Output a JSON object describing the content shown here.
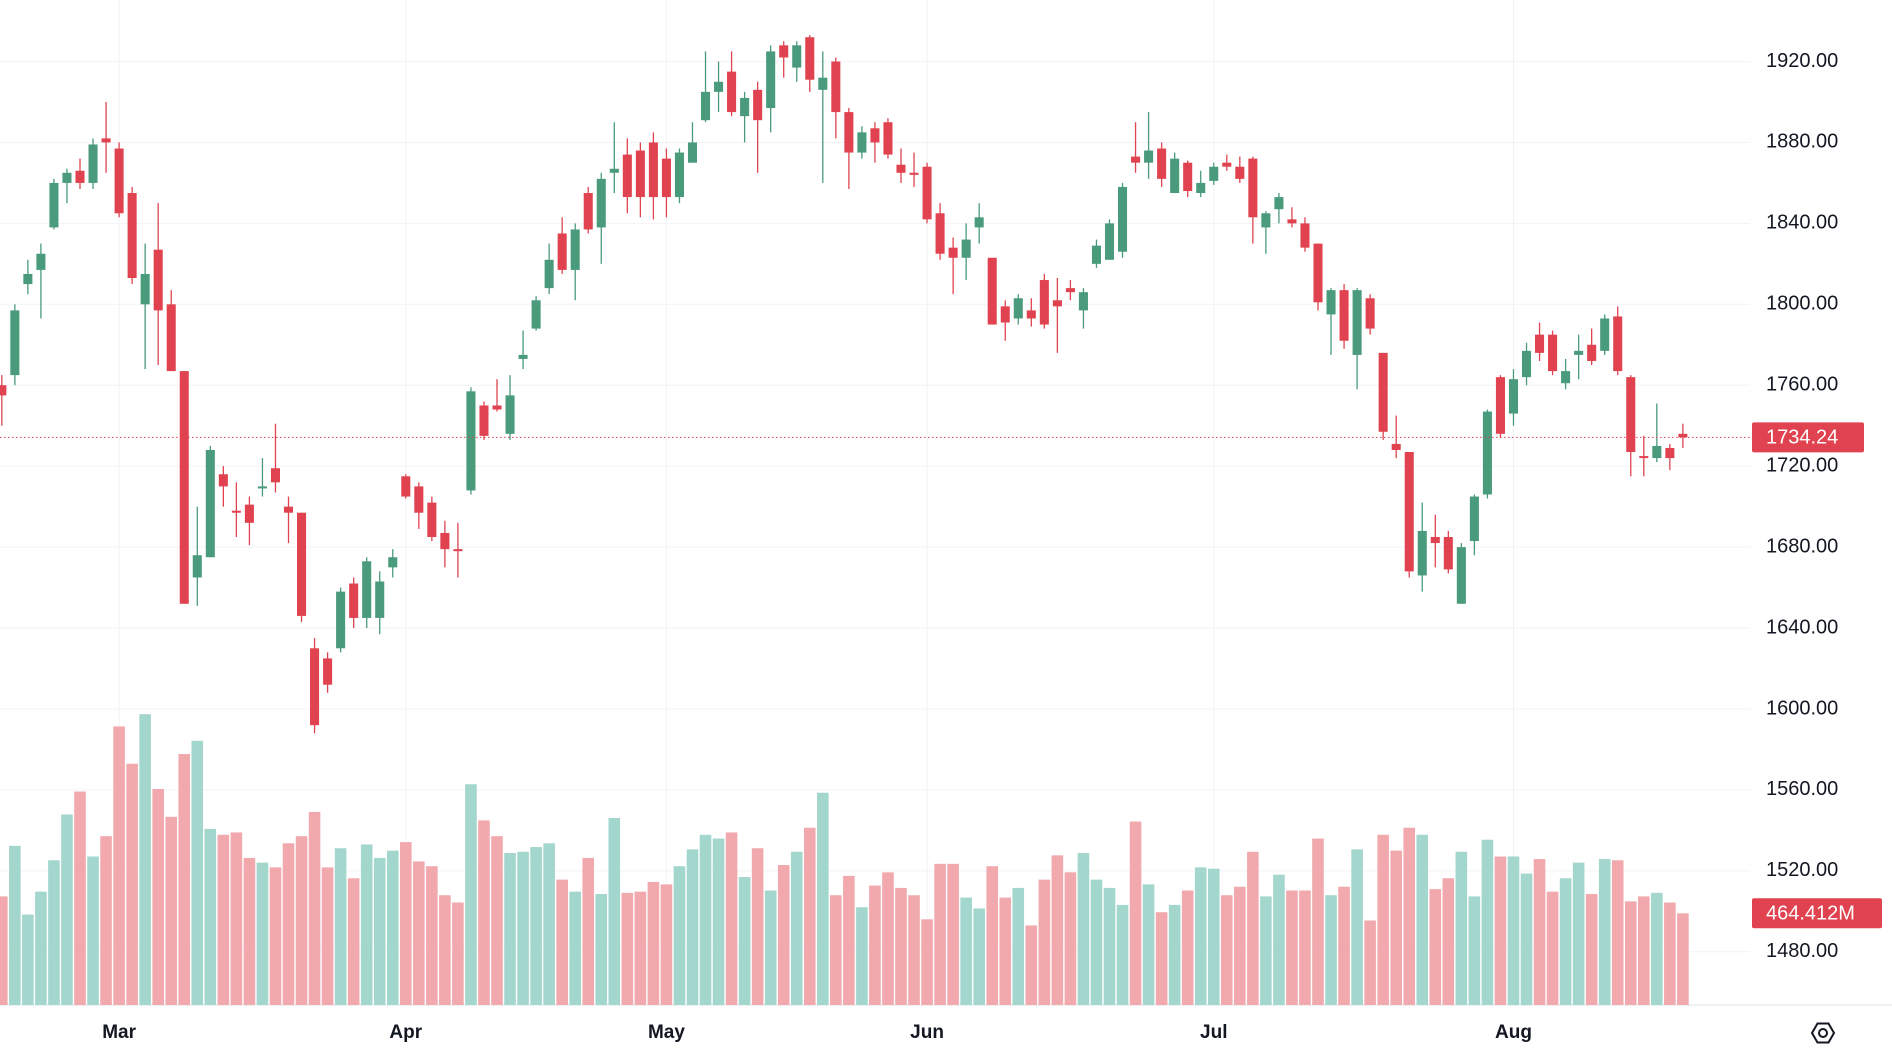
{
  "chart_data": {
    "type": "candlestick",
    "open": [
      1760,
      1765,
      1810,
      1817,
      1838,
      1860,
      1866,
      1860,
      1882,
      1877,
      1855,
      1800,
      1827,
      1800,
      1767,
      1665,
      1675,
      1716,
      1698,
      1701,
      1709,
      1719,
      1700,
      1697,
      1630,
      1625,
      1630,
      1662,
      1645,
      1645,
      1670,
      1715,
      1710,
      1702,
      1687,
      1679,
      1708,
      1750,
      1750,
      1736,
      1773,
      1788,
      1808,
      1835,
      1817,
      1855,
      1838,
      1865,
      1874,
      1876,
      1880,
      1872,
      1853,
      1870,
      1891,
      1905,
      1915,
      1893,
      1906,
      1897,
      1928,
      1917,
      1932,
      1906,
      1920,
      1895,
      1875,
      1887,
      1890,
      1869,
      1865,
      1868,
      1845,
      1828,
      1823,
      1838,
      1823,
      1799,
      1793,
      1797,
      1812,
      1802,
      1808,
      1797,
      1820,
      1822,
      1826,
      1873,
      1870,
      1877,
      1855,
      1870,
      1855,
      1861,
      1870,
      1868,
      1872,
      1838,
      1847,
      1842,
      1840,
      1830,
      1795,
      1807,
      1775,
      1803,
      1776,
      1731,
      1727,
      1666,
      1685,
      1685,
      1652,
      1683,
      1706,
      1764,
      1746,
      1764,
      1785,
      1785,
      1761,
      1775,
      1780,
      1777,
      1794,
      1764,
      1725,
      1724,
      1729,
      1736
    ],
    "high": [
      1765,
      1800,
      1822,
      1830,
      1862,
      1867,
      1872,
      1882,
      1900,
      1880,
      1858,
      1830,
      1850,
      1807,
      1767,
      1700,
      1730,
      1720,
      1712,
      1705,
      1724,
      1741,
      1705,
      1697,
      1635,
      1628,
      1660,
      1665,
      1675,
      1668,
      1679,
      1716,
      1712,
      1705,
      1693,
      1692,
      1759,
      1752,
      1763,
      1765,
      1787,
      1804,
      1830,
      1843,
      1840,
      1858,
      1865,
      1890,
      1882,
      1880,
      1885,
      1877,
      1877,
      1890,
      1925,
      1920,
      1925,
      1905,
      1910,
      1928,
      1930,
      1930,
      1933,
      1925,
      1922,
      1897,
      1888,
      1890,
      1892,
      1877,
      1875,
      1870,
      1850,
      1833,
      1840,
      1850,
      1823,
      1802,
      1805,
      1803,
      1815,
      1813,
      1812,
      1808,
      1832,
      1842,
      1860,
      1890,
      1895,
      1880,
      1875,
      1871,
      1866,
      1870,
      1874,
      1873,
      1873,
      1846,
      1855,
      1848,
      1843,
      1830,
      1808,
      1810,
      1808,
      1805,
      1776,
      1745,
      1727,
      1702,
      1696,
      1688,
      1682,
      1706,
      1748,
      1765,
      1768,
      1781,
      1791,
      1787,
      1773,
      1785,
      1788,
      1795,
      1799,
      1765,
      1735,
      1751,
      1731,
      1741
    ],
    "low": [
      1740,
      1760,
      1805,
      1793,
      1837,
      1850,
      1857,
      1857,
      1865,
      1843,
      1810,
      1768,
      1770,
      1767,
      1652,
      1651,
      1675,
      1700,
      1685,
      1681,
      1705,
      1707,
      1682,
      1643,
      1588,
      1608,
      1628,
      1640,
      1640,
      1637,
      1665,
      1704,
      1689,
      1683,
      1670,
      1665,
      1706,
      1733,
      1747,
      1733,
      1768,
      1787,
      1805,
      1815,
      1802,
      1835,
      1820,
      1855,
      1845,
      1843,
      1842,
      1843,
      1850,
      1870,
      1890,
      1895,
      1893,
      1880,
      1865,
      1885,
      1912,
      1910,
      1905,
      1860,
      1882,
      1857,
      1872,
      1870,
      1872,
      1860,
      1858,
      1840,
      1822,
      1805,
      1812,
      1830,
      1790,
      1782,
      1790,
      1789,
      1788,
      1776,
      1802,
      1788,
      1818,
      1822,
      1823,
      1865,
      1862,
      1858,
      1855,
      1853,
      1853,
      1859,
      1866,
      1860,
      1830,
      1825,
      1840,
      1838,
      1826,
      1797,
      1775,
      1778,
      1758,
      1785,
      1733,
      1724,
      1665,
      1658,
      1670,
      1667,
      1652,
      1676,
      1704,
      1734,
      1740,
      1760,
      1772,
      1765,
      1758,
      1763,
      1770,
      1775,
      1765,
      1715,
      1715,
      1722,
      1718,
      1729
    ],
    "close": [
      1755,
      1797,
      1815,
      1825,
      1860,
      1865,
      1860,
      1879,
      1880,
      1845,
      1813,
      1815,
      1797,
      1767,
      1652,
      1676,
      1728,
      1710,
      1697,
      1692,
      1710,
      1712,
      1697,
      1646,
      1592,
      1612,
      1658,
      1645,
      1673,
      1663,
      1675,
      1705,
      1697,
      1685,
      1679,
      1678,
      1757,
      1735,
      1748,
      1755,
      1775,
      1802,
      1822,
      1817,
      1837,
      1837,
      1862,
      1867,
      1853,
      1853,
      1853,
      1853,
      1875,
      1880,
      1905,
      1910,
      1895,
      1902,
      1891,
      1925,
      1922,
      1928,
      1911,
      1912,
      1895,
      1875,
      1885,
      1880,
      1874,
      1865,
      1864,
      1842,
      1825,
      1823,
      1832,
      1843,
      1790,
      1791,
      1803,
      1793,
      1790,
      1799,
      1806,
      1806,
      1829,
      1840,
      1858,
      1870,
      1876,
      1862,
      1872,
      1856,
      1860,
      1868,
      1868,
      1862,
      1843,
      1845,
      1853,
      1840,
      1828,
      1801,
      1807,
      1782,
      1807,
      1788,
      1737,
      1728,
      1668,
      1688,
      1682,
      1669,
      1680,
      1705,
      1747,
      1736,
      1763,
      1777,
      1776,
      1767,
      1767,
      1777,
      1772,
      1793,
      1767,
      1727,
      1724,
      1730,
      1724,
      1734.24
    ],
    "volume": [
      550,
      806,
      458,
      574,
      733,
      965,
      1081,
      752,
      855,
      1411,
      1222,
      1473,
      1094,
      953,
      1271,
      1338,
      892,
      862,
      874,
      745,
      721,
      697,
      819,
      855,
      978,
      697,
      794,
      642,
      813,
      745,
      782,
      825,
      727,
      703,
      556,
      519,
      1118,
      935,
      855,
      770,
      776,
      800,
      819,
      635,
      574,
      745,
      562,
      947,
      568,
      574,
      623,
      611,
      703,
      788,
      862,
      843,
      874,
      648,
      794,
      580,
      709,
      776,
      898,
      1075,
      556,
      654,
      495,
      605,
      672,
      593,
      556,
      434,
      715,
      715,
      544,
      489,
      703,
      544,
      593,
      403,
      635,
      758,
      672,
      770,
      635,
      593,
      507,
      929,
      611,
      470,
      507,
      580,
      697,
      690,
      556,
      599,
      776,
      550,
      660,
      580,
      580,
      843,
      556,
      599,
      788,
      428,
      862,
      782,
      898,
      862,
      587,
      642,
      776,
      550,
      837,
      752,
      752,
      666,
      739,
      574,
      642,
      721,
      562,
      739,
      733,
      525,
      550,
      568,
      519,
      464.412
    ],
    "last_volume_label": "464.412M",
    "xticks": [
      {
        "value": 9,
        "label": "Mar"
      },
      {
        "value": 31,
        "label": "Apr"
      },
      {
        "value": 51,
        "label": "May"
      },
      {
        "value": 71,
        "label": "Jun"
      },
      {
        "value": 93,
        "label": "Jul"
      },
      {
        "value": 116,
        "label": "Aug"
      }
    ],
    "ylim": [
      1453.7,
      1950.4
    ],
    "yticks": [
      {
        "value": 1480,
        "label": "1480.00"
      },
      {
        "value": 1520,
        "label": "1520.00"
      },
      {
        "value": 1560,
        "label": "1560.00"
      },
      {
        "value": 1600,
        "label": "1600.00"
      },
      {
        "value": 1640,
        "label": "1640.00"
      },
      {
        "value": 1680,
        "label": "1680.00"
      },
      {
        "value": 1720,
        "label": "1720.00"
      },
      {
        "value": 1760,
        "label": "1760.00"
      },
      {
        "value": 1800,
        "label": "1800.00"
      },
      {
        "value": 1840,
        "label": "1840.00"
      },
      {
        "value": 1880,
        "label": "1880.00"
      },
      {
        "value": 1920,
        "label": "1920.00"
      }
    ],
    "volume_lim": [
      0,
      5090
    ],
    "grid": true,
    "up_color": "#4a9a7c",
    "down_color": "#e0434f",
    "up_volume_color": "#a3d6cc",
    "down_volume_color": "#f1a9ae"
  }
}
